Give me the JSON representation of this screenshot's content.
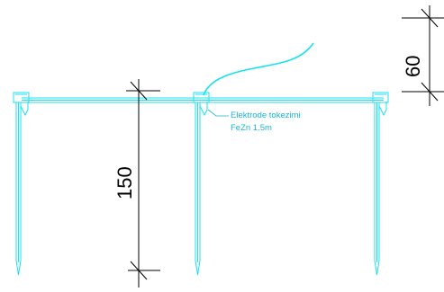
{
  "drawing": {
    "colors": {
      "grounding": "#19e0f2",
      "dimension": "#000000",
      "annotation": "#19b4d6",
      "background": "#ffffff"
    },
    "dimensions": {
      "electrode_length": "150",
      "burial_depth": "60"
    },
    "annotation": {
      "line1": "Elektrode tokezimi",
      "line2": "FeZn 1.5m"
    }
  }
}
